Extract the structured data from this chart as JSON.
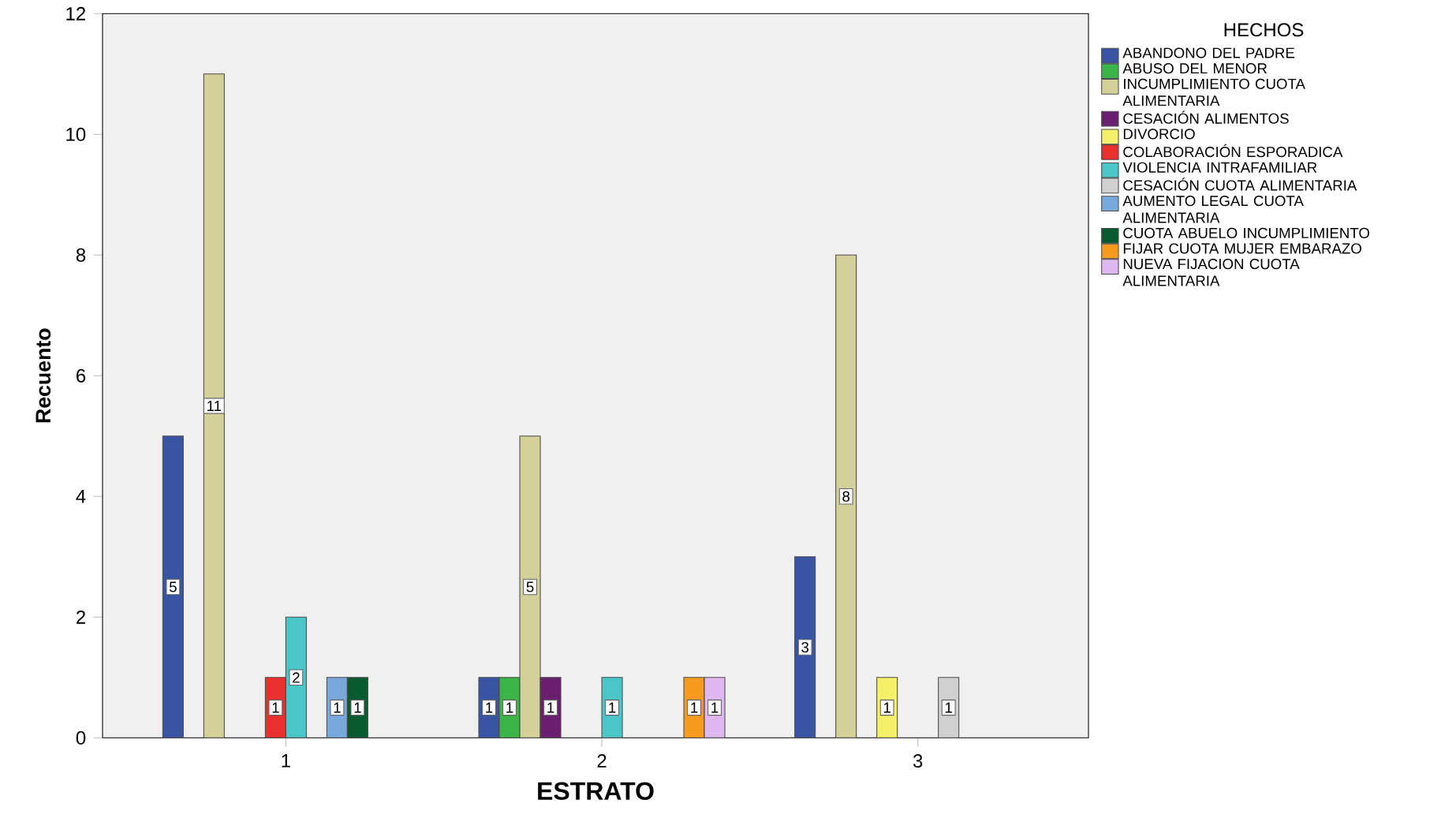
{
  "chart_data": {
    "type": "bar",
    "xlabel": "ESTRATO",
    "ylabel": "Recuento",
    "legend_title": "HECHOS",
    "categories": [
      "1",
      "2",
      "3"
    ],
    "ylim": [
      0,
      12
    ],
    "yticks": [
      0,
      2,
      4,
      6,
      8,
      10,
      12
    ],
    "data_labels": true,
    "legend": "right",
    "grid": false,
    "series": [
      {
        "name": "ABANDONO DEL PADRE",
        "color": "#3a54a4",
        "values": [
          5,
          1,
          3
        ]
      },
      {
        "name": "ABUSO DEL MENOR",
        "color": "#3cb44a",
        "values": [
          null,
          1,
          null
        ]
      },
      {
        "name": "INCUMPLIMIENTO CUOTA ALIMENTARIA",
        "color": "#d4d09a",
        "values": [
          11,
          5,
          8
        ]
      },
      {
        "name": "CESACIÓN ALIMENTOS",
        "color": "#6a1f6e",
        "values": [
          null,
          1,
          null
        ]
      },
      {
        "name": "DIVORCIO",
        "color": "#f5f06a",
        "values": [
          null,
          null,
          1
        ]
      },
      {
        "name": "COLABORACIÓN ESPORADICA",
        "color": "#e8302f",
        "values": [
          1,
          null,
          null
        ]
      },
      {
        "name": "VIOLENCIA INTRAFAMILIAR",
        "color": "#4ac5c8",
        "values": [
          2,
          1,
          null
        ]
      },
      {
        "name": "CESACIÓN CUOTA ALIMENTARIA",
        "color": "#d0d0d0",
        "values": [
          null,
          null,
          1
        ]
      },
      {
        "name": "AUMENTO LEGAL CUOTA ALIMENTARIA",
        "color": "#78a8dc",
        "values": [
          1,
          null,
          null
        ]
      },
      {
        "name": "CUOTA ABUELO INCUMPLIMIENTO",
        "color": "#0a5a30",
        "values": [
          1,
          null,
          null
        ]
      },
      {
        "name": "FIJAR CUOTA MUJER EMBARAZO",
        "color": "#f79a20",
        "values": [
          null,
          1,
          null
        ]
      },
      {
        "name": "NUEVA FIJACION CUOTA ALIMENTARIA",
        "color": "#e0b8f0",
        "values": [
          null,
          1,
          null
        ]
      }
    ]
  }
}
